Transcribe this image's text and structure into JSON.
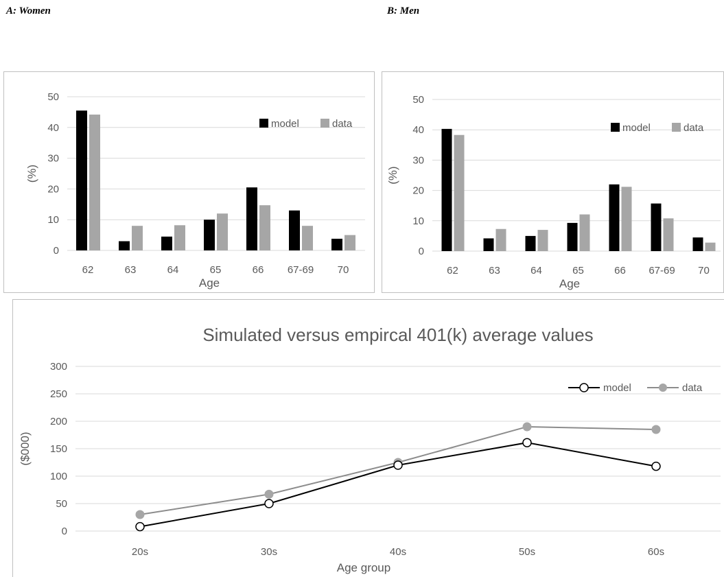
{
  "labels": {
    "women": "A: Women",
    "men": "B: Men"
  },
  "colors": {
    "model_bar": "#000000",
    "data_bar": "#a6a6a6",
    "grid": "#d9d9d9",
    "axis_text": "#595959",
    "frame": "#bfbfbf",
    "model_line": "#000000",
    "data_line": "#8c8c8c",
    "data_marker": "#a6a6a6"
  },
  "chart_data": [
    {
      "id": "women",
      "type": "bar",
      "xlabel": "Age",
      "ylabel": "(%)",
      "ylim": [
        0,
        50
      ],
      "yticks": [
        0,
        10,
        20,
        30,
        40,
        50
      ],
      "categories": [
        "62",
        "63",
        "64",
        "65",
        "66",
        "67-69",
        "70"
      ],
      "series": [
        {
          "name": "model",
          "values": [
            45.5,
            3,
            4.5,
            10,
            20.5,
            13,
            3.8
          ]
        },
        {
          "name": "data",
          "values": [
            44.2,
            8,
            8.2,
            12,
            14.7,
            8,
            5
          ]
        }
      ],
      "legend": "top-right",
      "grid": true
    },
    {
      "id": "men",
      "type": "bar",
      "xlabel": "Age",
      "ylabel": "(%)",
      "ylim": [
        0,
        50
      ],
      "yticks": [
        0,
        10,
        20,
        30,
        40,
        50
      ],
      "categories": [
        "62",
        "63",
        "64",
        "65",
        "66",
        "67-69",
        "70"
      ],
      "series": [
        {
          "name": "model",
          "values": [
            40.3,
            4.2,
            5,
            9.3,
            22,
            15.7,
            4.5
          ]
        },
        {
          "name": "data",
          "values": [
            38.3,
            7.3,
            7,
            12.1,
            21.2,
            10.8,
            2.8
          ]
        }
      ],
      "legend": "top-right",
      "grid": true
    },
    {
      "id": "values",
      "type": "line",
      "title": "Simulated versus empircal 401(k) average values",
      "xlabel": "Age group",
      "ylabel": "($000)",
      "ylim": [
        0,
        300
      ],
      "yticks": [
        0,
        50,
        100,
        150,
        200,
        250,
        300
      ],
      "categories": [
        "20s",
        "30s",
        "40s",
        "50s",
        "60s"
      ],
      "series": [
        {
          "name": "model",
          "values": [
            8,
            50,
            120,
            161,
            118
          ]
        },
        {
          "name": "data",
          "values": [
            30,
            67,
            125,
            190,
            185
          ]
        }
      ],
      "legend": "top-right",
      "grid": true
    }
  ]
}
